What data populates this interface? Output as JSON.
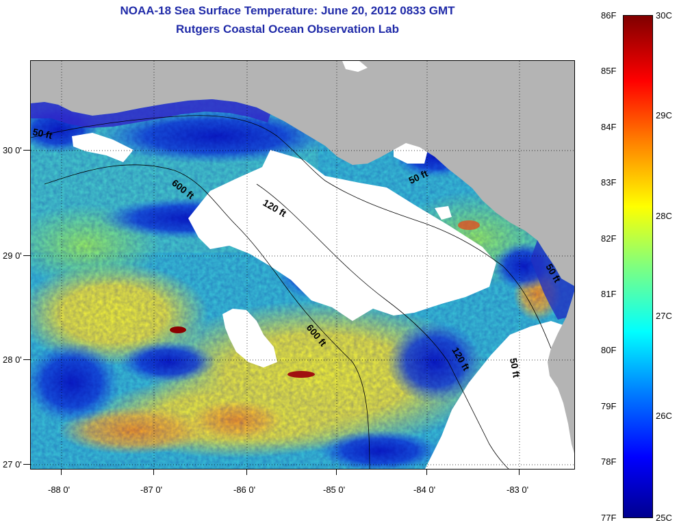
{
  "title_line1": "NOAA-18 Sea Surface Temperature:  June 20, 2012 0833 GMT",
  "title_line2": "Rutgers Coastal Ocean Observation Lab",
  "map": {
    "land_color": "#b4b4b4",
    "cloud_color": "#ffffff",
    "latitude_labels": [
      "30 0'",
      "29 0'",
      "28 0'",
      "27 0'"
    ],
    "longitude_labels": [
      "-88 0'",
      "-87 0'",
      "-86 0'",
      "-85 0'",
      "-84 0'",
      "-83 0'"
    ],
    "isobath_labels": [
      "50 ft",
      "600 ft",
      "120 ft",
      "50 ft",
      "600 ft",
      "120 ft",
      "50 ft",
      "50 ft"
    ]
  },
  "colorbar": {
    "fahrenheit_labels": [
      "86F",
      "85F",
      "84F",
      "83F",
      "82F",
      "81F",
      "80F",
      "79F",
      "78F",
      "77F"
    ],
    "celsius_labels": [
      "30C",
      "29C",
      "28C",
      "27C",
      "26C",
      "25C"
    ],
    "colors": [
      "#00008f",
      "#0000ff",
      "#007fff",
      "#00ffff",
      "#7fff7f",
      "#ffff00",
      "#ff7f00",
      "#ff0000",
      "#800000"
    ]
  }
}
